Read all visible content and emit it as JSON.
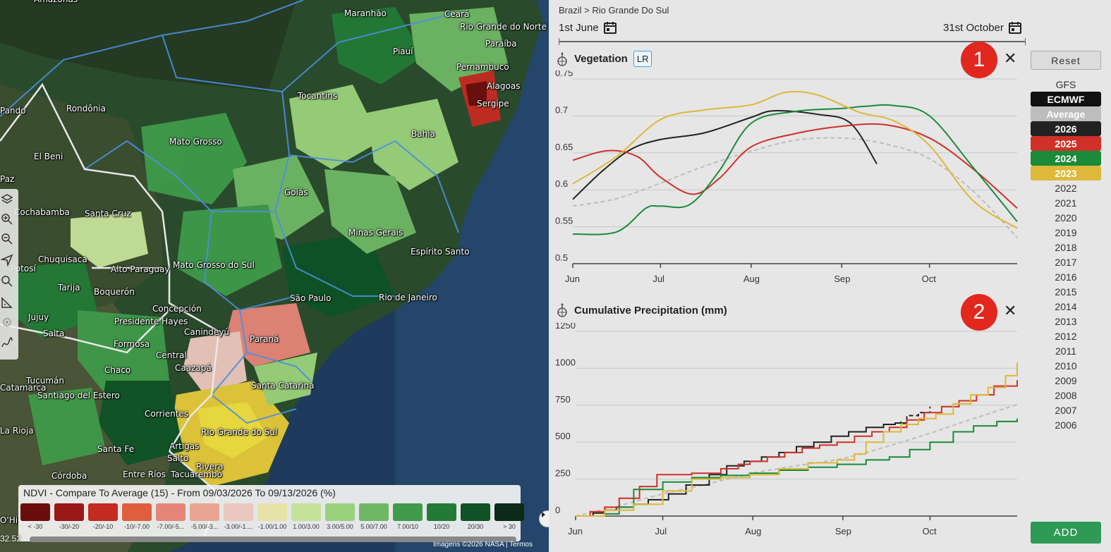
{
  "map": {
    "labels": [
      {
        "text": "Amazonas"
      },
      {
        "text": "Maranhão"
      },
      {
        "text": "Ceará"
      },
      {
        "text": "Rio Grande do Norte"
      },
      {
        "text": "Paraíba"
      },
      {
        "text": "Piauí"
      },
      {
        "text": "Pernambuco"
      },
      {
        "text": "Alagoas"
      },
      {
        "text": "Sergipe"
      },
      {
        "text": "Pando"
      },
      {
        "text": "Rondônia"
      },
      {
        "text": "Tocantins"
      },
      {
        "text": "Bahia"
      },
      {
        "text": "El Beni"
      },
      {
        "text": "Mato Grosso"
      },
      {
        "text": "Paz"
      },
      {
        "text": "Goiás"
      },
      {
        "text": "Cochabamba"
      },
      {
        "text": "Santa Cruz"
      },
      {
        "text": "Minas Gerais"
      },
      {
        "text": "Chuquisaca"
      },
      {
        "text": "Espírito Santo"
      },
      {
        "text": "Potosí"
      },
      {
        "text": "Alto Paraguay"
      },
      {
        "text": "Mato Grosso do Sul"
      },
      {
        "text": "Tarija"
      },
      {
        "text": "Boquerón"
      },
      {
        "text": "São Paulo"
      },
      {
        "text": "Rio de Janeiro"
      },
      {
        "text": "Jujuy"
      },
      {
        "text": "Concepción"
      },
      {
        "text": "Presidente Hayes"
      },
      {
        "text": "Salta"
      },
      {
        "text": "Canindeyú"
      },
      {
        "text": "Paraná"
      },
      {
        "text": "Formosa"
      },
      {
        "text": "Central"
      },
      {
        "text": "Chaco"
      },
      {
        "text": "Caazapá"
      },
      {
        "text": "Tucumán"
      },
      {
        "text": "Santiago del Estero"
      },
      {
        "text": "Santa Catarina"
      },
      {
        "text": "Catamarca"
      },
      {
        "text": "Corrientes"
      },
      {
        "text": "Rio Grande do Sul"
      },
      {
        "text": "La Rioja"
      },
      {
        "text": "Santa Fe"
      },
      {
        "text": "Artigas"
      },
      {
        "text": "Salto"
      },
      {
        "text": "Rivera"
      },
      {
        "text": "Córdoba"
      },
      {
        "text": "Entre Ríos"
      },
      {
        "text": "Tacuarembó"
      },
      {
        "text": "O'Higgins"
      }
    ],
    "coord_text": "32.52",
    "attribution": "Imagens ©2026 NASA | Termos",
    "legend": {
      "title": "NDVI - Compare To Average (15) - From 09/03/2026 To 09/13/2026 (%)",
      "items": [
        {
          "label": "< -30",
          "color": "#6b0d0d"
        },
        {
          "label": "-30/-20",
          "color": "#9a1818"
        },
        {
          "label": "-20/-10",
          "color": "#c42b22"
        },
        {
          "label": "-10/-7.00",
          "color": "#df5e3e"
        },
        {
          "label": "-7.00/-5...",
          "color": "#e58579"
        },
        {
          "label": "-5.00/-3...",
          "color": "#e8a594"
        },
        {
          "label": "-3.00/-1....",
          "color": "#ecc7bd"
        },
        {
          "label": "-1.00/1.00",
          "color": "#e7e2a6"
        },
        {
          "label": "1.00/3.00",
          "color": "#c6e29a"
        },
        {
          "label": "3.00/5.00",
          "color": "#9bd17c"
        },
        {
          "label": "5.00/7.00",
          "color": "#6fb765"
        },
        {
          "label": "7.00/10",
          "color": "#3f9a4a"
        },
        {
          "label": "10/20",
          "color": "#237a36"
        },
        {
          "label": "20/30",
          "color": "#0e5226"
        },
        {
          "label": "> 30",
          "color": "#0b2a17"
        }
      ]
    }
  },
  "panel": {
    "breadcrumb": "Brazil > Rio Grande Do Sul",
    "date_start": "1st June",
    "date_end": "31st October",
    "reset_label": "Reset",
    "add_label": "ADD",
    "series_list": [
      {
        "label": "GFS",
        "color": null
      },
      {
        "label": "ECMWF",
        "color": "#111111"
      },
      {
        "label": "Average",
        "color": "#bdbdbd"
      },
      {
        "label": "2026",
        "color": "#222222"
      },
      {
        "label": "2025",
        "color": "#cf3129"
      },
      {
        "label": "2024",
        "color": "#1b8a3a"
      },
      {
        "label": "2023",
        "color": "#ddb83a"
      },
      {
        "label": "2022",
        "color": null
      },
      {
        "label": "2021",
        "color": null
      },
      {
        "label": "2020",
        "color": null
      },
      {
        "label": "2019",
        "color": null
      },
      {
        "label": "2018",
        "color": null
      },
      {
        "label": "2017",
        "color": null
      },
      {
        "label": "2016",
        "color": null
      },
      {
        "label": "2015",
        "color": null
      },
      {
        "label": "2014",
        "color": null
      },
      {
        "label": "2013",
        "color": null
      },
      {
        "label": "2012",
        "color": null
      },
      {
        "label": "2011",
        "color": null
      },
      {
        "label": "2010",
        "color": null
      },
      {
        "label": "2009",
        "color": null
      },
      {
        "label": "2008",
        "color": null
      },
      {
        "label": "2007",
        "color": null
      },
      {
        "label": "2006",
        "color": null
      }
    ],
    "charts": [
      {
        "title": "Vegetation",
        "badge": "LR",
        "number": "1",
        "close": "✕"
      },
      {
        "title": "Cumulative Precipitation (mm)",
        "badge": "",
        "number": "2",
        "close": "✕"
      }
    ]
  },
  "chart_data": [
    {
      "type": "line",
      "ylim": [
        0.5,
        0.75
      ],
      "yticks": [
        "0.75",
        "0.7",
        "0.65",
        "0.6",
        "0.55",
        "0.5"
      ],
      "ytick_values": [
        0.75,
        0.7,
        0.65,
        0.6,
        0.55,
        0.5
      ],
      "xticks": [
        "Jun",
        "Jul",
        "Aug",
        "Sep",
        "Oct"
      ],
      "xtick_days": [
        0,
        30,
        61,
        92,
        122
      ],
      "xlim_days": [
        0,
        152
      ],
      "series": [
        {
          "name": "Average",
          "color": "#bdbdbd",
          "dashed": true,
          "x": [
            0,
            15,
            30,
            45,
            61,
            76,
            92,
            107,
            122,
            137,
            152
          ],
          "y": [
            0.578,
            0.588,
            0.609,
            0.632,
            0.652,
            0.667,
            0.67,
            0.662,
            0.642,
            0.598,
            0.535
          ]
        },
        {
          "name": "2026",
          "color": "#222222",
          "dashed": false,
          "x": [
            0,
            10,
            20,
            30,
            45,
            61,
            69,
            84,
            95,
            104
          ],
          "y": [
            0.587,
            0.625,
            0.655,
            0.668,
            0.677,
            0.698,
            0.707,
            0.702,
            0.69,
            0.635
          ]
        },
        {
          "name": "2025",
          "color": "#cf3129",
          "dashed": false,
          "x": [
            0,
            12,
            22,
            30,
            41,
            50,
            61,
            76,
            92,
            107,
            122,
            137,
            152
          ],
          "y": [
            0.64,
            0.653,
            0.645,
            0.617,
            0.594,
            0.615,
            0.658,
            0.676,
            0.686,
            0.688,
            0.67,
            0.628,
            0.575
          ]
        },
        {
          "name": "2024",
          "color": "#1b8a3a",
          "dashed": false,
          "x": [
            0,
            15,
            25,
            30,
            40,
            50,
            61,
            76,
            92,
            100,
            110,
            122,
            137,
            152
          ],
          "y": [
            0.54,
            0.543,
            0.575,
            0.578,
            0.58,
            0.625,
            0.69,
            0.706,
            0.71,
            0.713,
            0.714,
            0.7,
            0.63,
            0.557
          ]
        },
        {
          "name": "2023",
          "color": "#ddb83a",
          "dashed": false,
          "x": [
            0,
            15,
            30,
            45,
            61,
            73,
            84,
            98,
            110,
            122,
            137,
            152
          ],
          "y": [
            0.608,
            0.645,
            0.695,
            0.708,
            0.715,
            0.732,
            0.728,
            0.705,
            0.693,
            0.66,
            0.585,
            0.548
          ]
        }
      ]
    },
    {
      "type": "line",
      "ylim": [
        0,
        1250
      ],
      "yticks": [
        "1250",
        "1000",
        "750",
        "500",
        "250",
        "0"
      ],
      "ytick_values": [
        1250,
        1000,
        750,
        500,
        250,
        0
      ],
      "xticks": [
        "Jun",
        "Jul",
        "Aug",
        "Sep",
        "Oct"
      ],
      "xtick_days": [
        0,
        30,
        61,
        92,
        122
      ],
      "xlim_days": [
        0,
        152
      ],
      "series": [
        {
          "name": "Average",
          "color": "#bdbdbd",
          "dashed": true,
          "x": [
            0,
            15,
            30,
            45,
            61,
            76,
            92,
            107,
            122,
            137,
            152
          ],
          "y": [
            0,
            70,
            150,
            215,
            290,
            340,
            390,
            470,
            560,
            660,
            755
          ]
        },
        {
          "name": "2026",
          "color": "#222222",
          "dashed": false,
          "step": true,
          "x": [
            0,
            6,
            10,
            14,
            20,
            25,
            32,
            38,
            46,
            52,
            58,
            64,
            70,
            76,
            82,
            88,
            94,
            100,
            106,
            110,
            112
          ],
          "y": [
            0,
            20,
            40,
            60,
            80,
            110,
            150,
            210,
            280,
            340,
            370,
            400,
            430,
            470,
            500,
            540,
            570,
            600,
            620,
            630,
            640
          ]
        },
        {
          "name": "2026 forecast",
          "color": "#222222",
          "dashed": true,
          "step": true,
          "x": [
            110,
            114,
            118,
            122
          ],
          "y": [
            630,
            680,
            700,
            740
          ]
        },
        {
          "name": "2025",
          "color": "#cf3129",
          "dashed": false,
          "step": true,
          "x": [
            0,
            5,
            10,
            15,
            22,
            28,
            40,
            50,
            56,
            60,
            66,
            72,
            78,
            84,
            90,
            96,
            102,
            108,
            114,
            120,
            126,
            132,
            138,
            144,
            152
          ],
          "y": [
            0,
            30,
            60,
            120,
            200,
            280,
            290,
            320,
            350,
            370,
            400,
            430,
            460,
            480,
            500,
            540,
            570,
            600,
            650,
            700,
            740,
            780,
            820,
            880,
            920
          ]
        },
        {
          "name": "2024",
          "color": "#1b8a3a",
          "dashed": false,
          "step": true,
          "x": [
            0,
            10,
            15,
            20,
            30,
            40,
            50,
            60,
            70,
            80,
            90,
            100,
            108,
            115,
            122,
            130,
            137,
            145,
            152
          ],
          "y": [
            0,
            15,
            60,
            180,
            230,
            260,
            275,
            290,
            310,
            330,
            350,
            380,
            400,
            450,
            500,
            570,
            610,
            640,
            660
          ]
        },
        {
          "name": "2023",
          "color": "#ddb83a",
          "dashed": false,
          "step": true,
          "x": [
            0,
            10,
            20,
            30,
            40,
            50,
            60,
            70,
            80,
            90,
            96,
            100,
            106,
            112,
            118,
            124,
            130,
            136,
            142,
            148,
            152
          ],
          "y": [
            0,
            40,
            80,
            170,
            250,
            260,
            280,
            320,
            360,
            380,
            420,
            500,
            570,
            620,
            660,
            690,
            760,
            820,
            870,
            950,
            1040
          ]
        }
      ]
    }
  ]
}
